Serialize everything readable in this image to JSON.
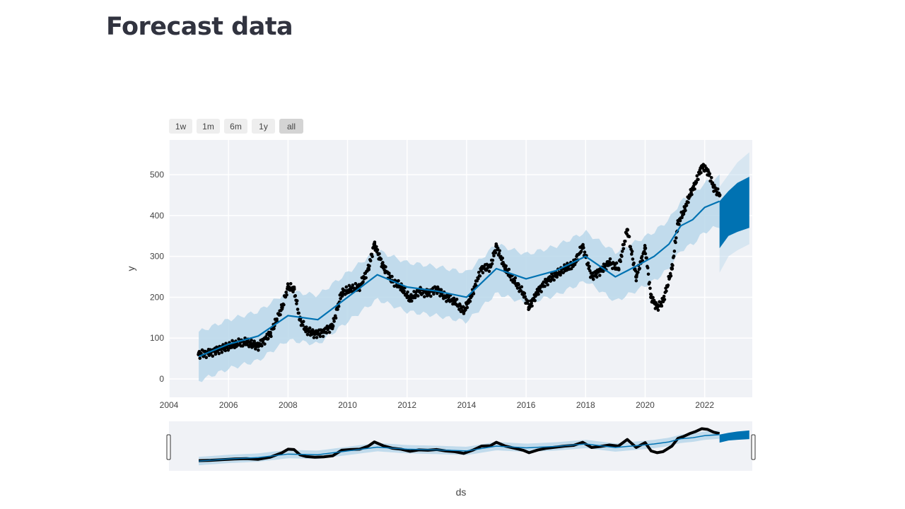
{
  "page": {
    "title": "Forecast data"
  },
  "range_selector": {
    "buttons": [
      {
        "label": "1w",
        "active": false
      },
      {
        "label": "1m",
        "active": false
      },
      {
        "label": "6m",
        "active": false
      },
      {
        "label": "1y",
        "active": false
      },
      {
        "label": "all",
        "active": true
      }
    ]
  },
  "chart_data": {
    "type": "scatter",
    "title": "",
    "xlabel": "ds",
    "ylabel": "y",
    "xlim": [
      2004.0,
      2023.6
    ],
    "ylim": [
      -45,
      585
    ],
    "x_ticks": [
      2004,
      2006,
      2008,
      2010,
      2012,
      2014,
      2016,
      2018,
      2020,
      2022
    ],
    "y_ticks": [
      0,
      100,
      200,
      300,
      400,
      500
    ],
    "grid": true,
    "legend": "none",
    "rangeslider": true,
    "colors": {
      "observed": "#000000",
      "forecast_line": "#0072b2",
      "uncertainty_band": "#b9d7ea",
      "plot_bg": "#f0f2f6",
      "grid": "#ffffff"
    },
    "series": [
      {
        "kind": "observed",
        "x": [
          2005.0,
          2005.4,
          2005.8,
          2006.2,
          2006.6,
          2007.0,
          2007.4,
          2007.8,
          2008.0,
          2008.2,
          2008.4,
          2008.6,
          2008.9,
          2009.2,
          2009.5,
          2009.8,
          2010.1,
          2010.4,
          2010.7,
          2010.9,
          2011.2,
          2011.5,
          2011.8,
          2012.1,
          2012.4,
          2012.7,
          2013.0,
          2013.3,
          2013.6,
          2013.9,
          2014.2,
          2014.5,
          2014.8,
          2015.0,
          2015.3,
          2015.6,
          2015.9,
          2016.1,
          2016.4,
          2016.7,
          2017.0,
          2017.3,
          2017.6,
          2017.9,
          2018.2,
          2018.5,
          2018.8,
          2019.1,
          2019.4,
          2019.7,
          2020.0,
          2020.2,
          2020.4,
          2020.6,
          2020.9,
          2021.1,
          2021.3,
          2021.5,
          2021.7,
          2021.9,
          2022.1,
          2022.3,
          2022.5
        ],
        "y": [
          60,
          65,
          75,
          85,
          90,
          80,
          110,
          175,
          225,
          220,
          145,
          120,
          110,
          115,
          130,
          210,
          220,
          225,
          270,
          330,
          275,
          240,
          225,
          195,
          215,
          210,
          220,
          200,
          190,
          165,
          210,
          270,
          275,
          325,
          270,
          240,
          210,
          175,
          215,
          240,
          255,
          270,
          280,
          325,
          250,
          265,
          285,
          270,
          365,
          250,
          320,
          200,
          175,
          190,
          270,
          380,
          410,
          450,
          480,
          520,
          510,
          470,
          450
        ]
      },
      {
        "kind": "forecast",
        "x": [
          2005.0,
          2006.0,
          2007.0,
          2008.0,
          2009.0,
          2010.0,
          2011.0,
          2012.0,
          2013.0,
          2014.0,
          2015.0,
          2016.0,
          2017.0,
          2018.0,
          2019.0,
          2019.8,
          2020.3,
          2020.8,
          2021.2,
          2021.6,
          2022.0,
          2022.5
        ],
        "y": [
          55,
          85,
          105,
          155,
          145,
          200,
          255,
          225,
          215,
          200,
          270,
          245,
          265,
          300,
          250,
          280,
          300,
          330,
          375,
          390,
          420,
          435
        ],
        "band_width": 60
      },
      {
        "kind": "forecast-future",
        "x": [
          2022.5,
          2022.8,
          2023.1,
          2023.5
        ],
        "y_lower": [
          320,
          350,
          360,
          370
        ],
        "y_upper": [
          435,
          460,
          480,
          495
        ],
        "outer_lower": [
          260,
          300,
          315,
          330
        ],
        "outer_upper": [
          470,
          500,
          530,
          555
        ]
      }
    ]
  }
}
